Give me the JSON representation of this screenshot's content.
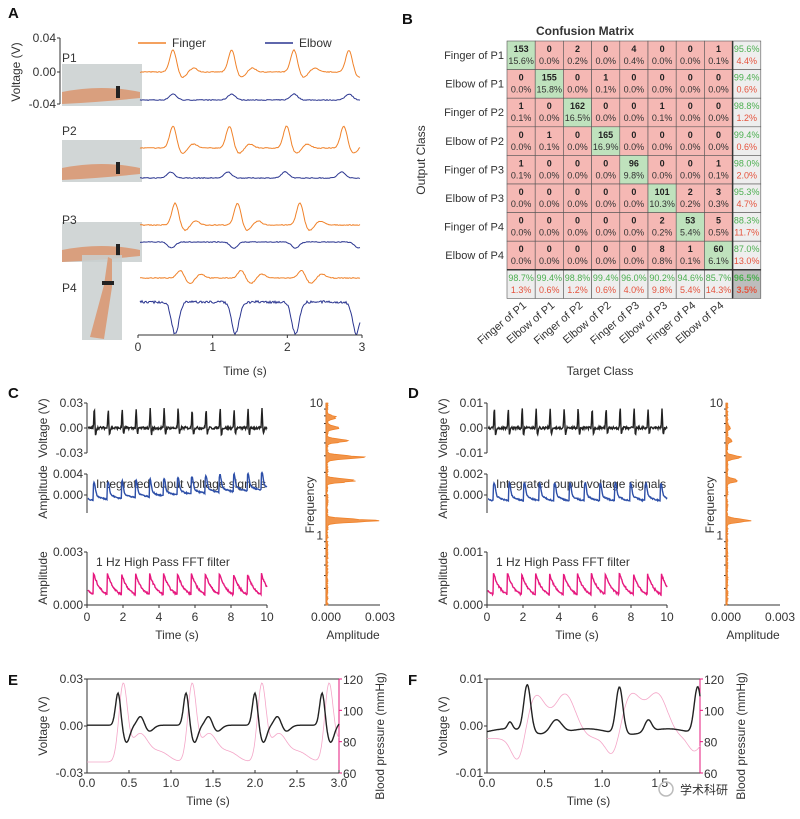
{
  "panel_labels": [
    "A",
    "B",
    "C",
    "D",
    "E",
    "F"
  ],
  "watermark": "学术科研",
  "colors": {
    "finger": "#f0822a",
    "elbow": "#2a3590",
    "black": "#222222",
    "blue": "#2d4fa8",
    "magenta": "#e6187e",
    "fft": "#f0822a",
    "bp": "#f4a6c8",
    "bp_axis": "#e6187e",
    "cm_green": "#bfe2bd",
    "cm_red": "#f5b8b4",
    "cm_gray": "#eeeeee",
    "cm_gray_dark": "#bdbdbd"
  },
  "chart_data": [
    {
      "id": "A",
      "type": "line",
      "title": "",
      "ylabel": "Voltage (V)",
      "xlabel": "Time (s)",
      "yticks": [
        "0.04",
        "0.00",
        "-0.04"
      ],
      "ylim": [
        -0.04,
        0.04
      ],
      "xticks": [
        "0",
        "1",
        "2",
        "3"
      ],
      "xlim": [
        0,
        3
      ],
      "legend": [
        {
          "name": "Finger",
          "color": "#f0822a"
        },
        {
          "name": "Elbow",
          "color": "#2a3590"
        }
      ],
      "legend_position": "top",
      "subjects": [
        {
          "label": "P1",
          "image": "forearm-palm-up-photo",
          "finger_peaks": [
            0.45,
            1.25,
            2.1,
            2.85
          ],
          "elbow_peaks": [
            0.45,
            1.25,
            2.1,
            2.85
          ],
          "elbow_polarity": "positive"
        },
        {
          "label": "P2",
          "image": "forearm-palm-up-photo",
          "finger_peaks": [
            0.45,
            1.22,
            2.0,
            2.78
          ],
          "elbow_peaks": [
            0.42,
            1.2,
            1.98,
            2.75
          ],
          "elbow_polarity": "positive"
        },
        {
          "label": "P3",
          "image": "forearm-palm-up-photo",
          "finger_peaks": [
            0.48,
            1.33,
            2.18
          ],
          "elbow_peaks": [
            0.43,
            1.28,
            2.12,
            2.98
          ],
          "elbow_polarity": "negative"
        },
        {
          "label": "P4",
          "image": "raised-arm-photo",
          "finger_peaks": [
            0.55,
            1.38,
            2.2
          ],
          "elbow_peaks": [
            0.48,
            1.3,
            2.12,
            2.95
          ],
          "elbow_polarity": "negative"
        }
      ]
    },
    {
      "id": "B",
      "type": "heatmap",
      "title": "Confusion Matrix",
      "xlabel": "Target Class",
      "ylabel": "Output Class",
      "classes": [
        "Finger of P1",
        "Elbow of P1",
        "Finger of P2",
        "Elbow of P2",
        "Finger of P3",
        "Elbow of P3",
        "Finger of P4",
        "Elbow of P4"
      ],
      "counts": [
        [
          153,
          0,
          2,
          0,
          4,
          0,
          0,
          1
        ],
        [
          0,
          155,
          0,
          1,
          0,
          0,
          0,
          0
        ],
        [
          1,
          0,
          162,
          0,
          0,
          1,
          0,
          0
        ],
        [
          0,
          1,
          0,
          165,
          0,
          0,
          0,
          0
        ],
        [
          1,
          0,
          0,
          0,
          96,
          0,
          0,
          1
        ],
        [
          0,
          0,
          0,
          0,
          0,
          101,
          2,
          3
        ],
        [
          0,
          0,
          0,
          0,
          0,
          2,
          53,
          5
        ],
        [
          0,
          0,
          0,
          0,
          0,
          8,
          1,
          60
        ]
      ],
      "percents": [
        [
          "15.6%",
          "0.0%",
          "0.2%",
          "0.0%",
          "0.4%",
          "0.0%",
          "0.0%",
          "0.1%"
        ],
        [
          "0.0%",
          "15.8%",
          "0.0%",
          "0.1%",
          "0.0%",
          "0.0%",
          "0.0%",
          "0.0%"
        ],
        [
          "0.1%",
          "0.0%",
          "16.5%",
          "0.0%",
          "0.0%",
          "0.1%",
          "0.0%",
          "0.0%"
        ],
        [
          "0.0%",
          "0.1%",
          "0.0%",
          "16.9%",
          "0.0%",
          "0.0%",
          "0.0%",
          "0.0%"
        ],
        [
          "0.1%",
          "0.0%",
          "0.0%",
          "0.0%",
          "9.8%",
          "0.0%",
          "0.0%",
          "0.1%"
        ],
        [
          "0.0%",
          "0.0%",
          "0.0%",
          "0.0%",
          "0.0%",
          "10.3%",
          "0.2%",
          "0.3%"
        ],
        [
          "0.0%",
          "0.0%",
          "0.0%",
          "0.0%",
          "0.0%",
          "0.2%",
          "5.4%",
          "0.5%"
        ],
        [
          "0.0%",
          "0.0%",
          "0.0%",
          "0.0%",
          "0.0%",
          "0.8%",
          "0.1%",
          "6.1%"
        ]
      ],
      "row_summary": [
        [
          "95.6%",
          "4.4%"
        ],
        [
          "99.4%",
          "0.6%"
        ],
        [
          "98.8%",
          "1.2%"
        ],
        [
          "99.4%",
          "0.6%"
        ],
        [
          "98.0%",
          "2.0%"
        ],
        [
          "95.3%",
          "4.7%"
        ],
        [
          "88.3%",
          "11.7%"
        ],
        [
          "87.0%",
          "13.0%"
        ]
      ],
      "col_summary": [
        [
          "98.7%",
          "1.3%"
        ],
        [
          "99.4%",
          "0.6%"
        ],
        [
          "98.8%",
          "1.2%"
        ],
        [
          "99.4%",
          "0.6%"
        ],
        [
          "96.0%",
          "4.0%"
        ],
        [
          "90.2%",
          "9.8%"
        ],
        [
          "94.6%",
          "5.4%"
        ],
        [
          "85.7%",
          "14.3%"
        ]
      ],
      "overall": [
        "96.5%",
        "3.5%"
      ]
    },
    {
      "id": "C",
      "type": "line",
      "subplots": [
        {
          "name": "voltage",
          "ylabel": "Voltage (V)",
          "yticks": [
            "0.03",
            "0.00",
            "-0.03"
          ],
          "ylim": [
            -0.03,
            0.03
          ],
          "color": "#222222",
          "beats": 13,
          "annotation": ""
        },
        {
          "name": "integrated",
          "ylabel": "Amplitude",
          "yticks": [
            "0.004",
            "0.000"
          ],
          "ylim": [
            -0.0007,
            0.004
          ],
          "color": "#2d4fa8",
          "beats": 13,
          "annotation": "Integrated ouput voltage signals"
        },
        {
          "name": "highpass",
          "ylabel": "Amplitude",
          "yticks": [
            "0.003",
            "0.000"
          ],
          "ylim": [
            0,
            0.003
          ],
          "color": "#e6187e",
          "beats": 13,
          "annotation": "1 Hz High Pass FFT filter"
        }
      ],
      "xlabel": "Time (s)",
      "xticks": [
        "0",
        "2",
        "4",
        "6",
        "8",
        "10"
      ],
      "xlim": [
        0,
        10
      ],
      "fft": {
        "type": "area",
        "ylabel": "Frequency",
        "xlabel": "Amplitude",
        "yticks": [
          "10",
          "1"
        ],
        "yscale": "log",
        "ylim": [
          0.3,
          10
        ],
        "xticks": [
          "0.000",
          "0.003"
        ],
        "xlim": [
          0,
          0.003
        ],
        "peaks": [
          {
            "freq": 1.3,
            "amp": 0.003
          },
          {
            "freq": 2.6,
            "amp": 0.0018
          },
          {
            "freq": 3.9,
            "amp": 0.0023
          },
          {
            "freq": 5.2,
            "amp": 0.0013
          },
          {
            "freq": 6.5,
            "amp": 0.0008
          },
          {
            "freq": 7.8,
            "amp": 0.0006
          }
        ]
      }
    },
    {
      "id": "D",
      "type": "line",
      "subplots": [
        {
          "name": "voltage",
          "ylabel": "Voltage (V)",
          "yticks": [
            "0.01",
            "0.00",
            "-0.01"
          ],
          "ylim": [
            -0.01,
            0.01
          ],
          "color": "#222222",
          "beats": 13,
          "annotation": ""
        },
        {
          "name": "integrated",
          "ylabel": "Amplitude",
          "yticks": [
            "0.002",
            "0.000"
          ],
          "ylim": [
            -0.0005,
            0.002
          ],
          "color": "#2d4fa8",
          "beats": 12,
          "annotation": "Integrated ouput voltage signals"
        },
        {
          "name": "highpass",
          "ylabel": "Amplitude",
          "yticks": [
            "0.001",
            "0.000"
          ],
          "ylim": [
            -0.0004,
            0.001
          ],
          "color": "#e6187e",
          "beats": 13,
          "annotation": "1 Hz High Pass FFT filter"
        }
      ],
      "xlabel": "Time (s)",
      "xticks": [
        "0",
        "2",
        "4",
        "6",
        "8",
        "10"
      ],
      "xlim": [
        0,
        10
      ],
      "fft": {
        "type": "area",
        "ylabel": "Frequency",
        "xlabel": "Amplitude",
        "yticks": [
          "10",
          "1"
        ],
        "yscale": "log",
        "ylim": [
          0.3,
          10
        ],
        "xticks": [
          "0.000",
          "0.003"
        ],
        "xlim": [
          0,
          0.003
        ],
        "peaks": [
          {
            "freq": 1.3,
            "amp": 0.0015
          },
          {
            "freq": 2.6,
            "amp": 0.0007
          },
          {
            "freq": 3.9,
            "amp": 0.0009
          },
          {
            "freq": 5.2,
            "amp": 0.0003
          },
          {
            "freq": 6.5,
            "amp": 0.0002
          }
        ]
      }
    },
    {
      "id": "E",
      "type": "line",
      "xlabel": "Time (s)",
      "ylabel": "Voltage (V)",
      "y2label": "Blood pressure (mmHg)",
      "xticks": [
        "0.0",
        "0.5",
        "1.0",
        "1.5",
        "2.0",
        "2.5",
        "3.0"
      ],
      "xlim": [
        0,
        3
      ],
      "yticks": [
        "0.03",
        "0.00",
        "-0.03"
      ],
      "ylim": [
        -0.03,
        0.03
      ],
      "y2ticks": [
        "120",
        "100",
        "80",
        "60"
      ],
      "y2lim": [
        60,
        120
      ],
      "series": [
        {
          "name": "Voltage",
          "axis": "left",
          "color": "#222222",
          "peaks": [
            0.37,
            1.18,
            2.0,
            2.8
          ],
          "peak_value": 0.021
        },
        {
          "name": "Blood pressure",
          "axis": "right",
          "color": "#f4a6c8",
          "peaks": [
            0.43,
            1.25,
            2.08,
            2.88
          ],
          "peak_value": 115
        }
      ]
    },
    {
      "id": "F",
      "type": "line",
      "xlabel": "Time (s)",
      "ylabel": "Voltage (V)",
      "y2label": "Blood pressure (mmHg)",
      "xticks": [
        "0.0",
        "0.5",
        "1.0",
        "1.5"
      ],
      "xlim": [
        0,
        1.85
      ],
      "yticks": [
        "0.01",
        "0.00",
        "-0.01"
      ],
      "ylim": [
        -0.01,
        0.01
      ],
      "y2ticks": [
        "120",
        "100",
        "80",
        "60"
      ],
      "y2lim": [
        60,
        120
      ],
      "series": [
        {
          "name": "Voltage",
          "axis": "left",
          "color": "#222222",
          "peaks": [
            0.35,
            1.15,
            1.83
          ],
          "peak_value": 0.009
        },
        {
          "name": "Blood pressure",
          "axis": "right",
          "color": "#f4a6c8",
          "peaks": [
            0.42,
            0.68,
            1.25,
            1.48
          ],
          "peak_value": 112
        }
      ]
    }
  ]
}
